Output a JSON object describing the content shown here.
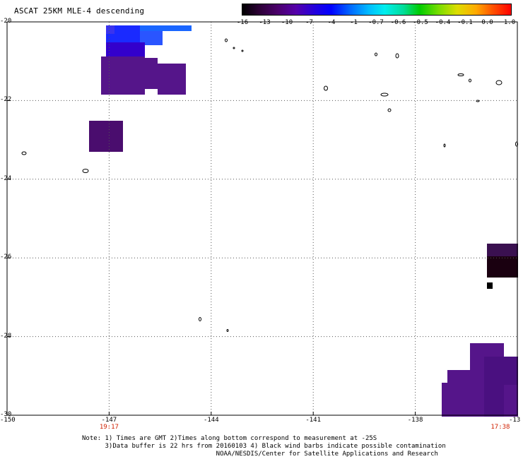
{
  "title": "ASCAT 25KM MLE-4 descending",
  "colorbar": {
    "ticks": [
      "-16",
      "-13",
      "-10",
      "-7",
      "-4",
      "-1",
      "-0.7",
      "-0.6",
      "-0.5",
      "-0.4",
      "-0.1",
      "0.0",
      "1.0"
    ]
  },
  "map": {
    "lat_labels": [
      "-20",
      "-22",
      "-24",
      "-26",
      "-28",
      "-30"
    ],
    "lon_labels": [
      "-150",
      "-147",
      "-144",
      "-141",
      "-138",
      "-13"
    ],
    "lat_range": [
      -30,
      -20
    ],
    "lon_range": [
      -150,
      -135
    ],
    "grid": "dotted",
    "time_labels": [
      {
        "text": "19:17",
        "lon": -147
      },
      {
        "text": "17:38",
        "lon": -135.5
      }
    ],
    "colors": {
      "coastline": "#000000",
      "time_label": "#d02000",
      "grid": "#555555"
    }
  },
  "notes": [
    "Note: 1) Times are GMT 2)Times along bottom correspond to measurement at -25S",
    "      3)Data buffer is 22 hrs from 20160103 4) Black wind barbs indicate possible contamination",
    "                                   NOAA/NESDIS/Center for Satellite Applications and Research"
  ]
}
